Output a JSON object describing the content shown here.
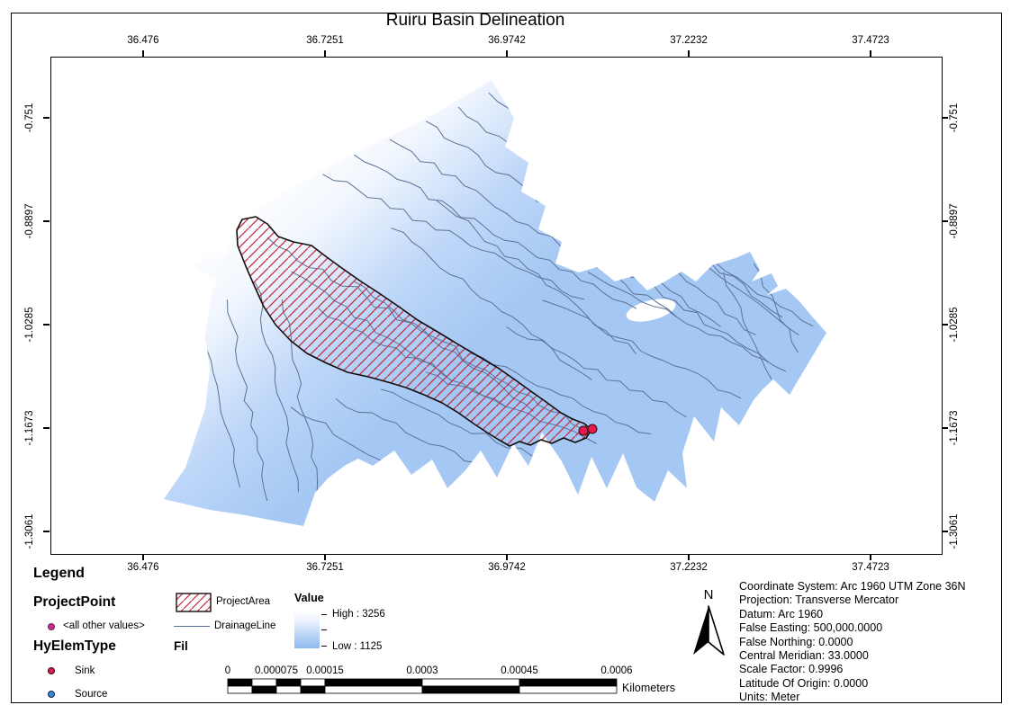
{
  "title": "Ruiru Basin Delineation",
  "axes": {
    "x_labels": [
      "36.476",
      "36.7251",
      "36.9742",
      "37.2232",
      "37.4723"
    ],
    "y_labels": [
      "-0.751",
      "-0.8897",
      "-1.0285",
      "-1.1673",
      "-1.3061"
    ]
  },
  "legend": {
    "title": "Legend",
    "group1_header": "ProjectPoint",
    "group1_item": "<all other values>",
    "group2_header": "HyElemType",
    "sink_label": "Sink",
    "source_label": "Source",
    "project_area_label": "ProjectArea",
    "drainage_line_label": "DrainageLine",
    "fil_header": "Fil",
    "value_header": "Value",
    "value_high": "High : 3256",
    "value_low": "Low : 1125"
  },
  "scale_bar": {
    "labels": [
      "0",
      "0.000075",
      "0.00015",
      "0.0003",
      "0.00045",
      "0.0006"
    ],
    "units": "Kilometers"
  },
  "north_arrow": {
    "label": "N"
  },
  "coordinate_info": [
    "Coordinate System: Arc 1960 UTM Zone 36N",
    "Projection: Transverse Mercator",
    "Datum: Arc 1960",
    "False Easting: 500,000.0000",
    "False Northing: 0.0000",
    "Central Meridian: 33.0000",
    "Scale Factor: 0.9996",
    "Latitude Of Origin: 0.0000",
    "Units: Meter"
  ],
  "colors": {
    "basin_fill": "#a4c8f3",
    "river": "#5d7196",
    "hatch_red": "#c22e3e",
    "area_outline": "#140c0c",
    "outlet_point": "#e51a4c",
    "legend_magenta": "#cf2a94",
    "legend_sink": "#e01a4f",
    "legend_source": "#3f86d8"
  }
}
